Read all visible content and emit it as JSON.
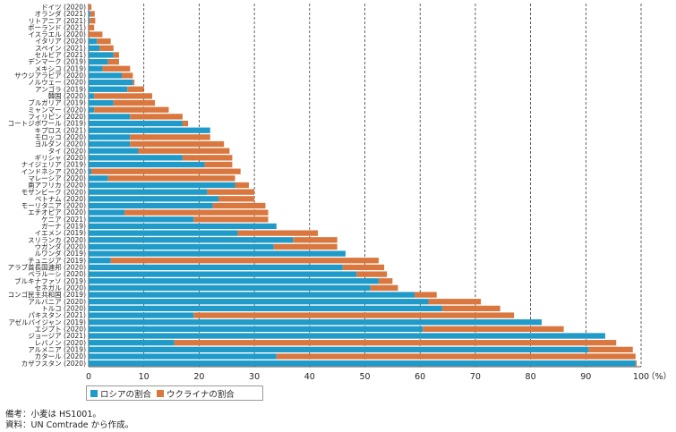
{
  "chart_data": {
    "type": "bar",
    "orientation": "horizontal",
    "stacked": true,
    "categories": [
      "ドイツ (2020)",
      "オランダ (2021)",
      "リトアニア (2021)",
      "ポーランド (2021)",
      "イスラエル (2020)",
      "イタリア (2020)",
      "スペイン (2021)",
      "セルビア (2021)",
      "デンマーク (2019)",
      "メキシコ (2019)",
      "サウジアラビア (2020)",
      "ノルウェー (2020)",
      "アンゴラ (2019)",
      "韓国 (2020)",
      "ブルガリア (2019)",
      "ミャンマー (2020)",
      "フィリピン (2020)",
      "コートジボワール (2019)",
      "キプロス (2021)",
      "モロッコ (2020)",
      "ヨルダン (2020)",
      "タイ (2020)",
      "ギリシャ (2020)",
      "ナイジェリア (2019)",
      "インドネシア (2020)",
      "マレーシア (2020)",
      "南アフリカ (2020)",
      "モザンビーク (2020)",
      "ベトナム (2020)",
      "モーリタニア (2020)",
      "エチオピア (2020)",
      "ケニア (2021)",
      "ガーナ (2019)",
      "イエメン (2019)",
      "スリランカ (2020)",
      "ウガンダ (2020)",
      "ルワンダ (2019)",
      "チュニジア (2019)",
      "アラブ首長国連邦 (2020)",
      "ベラルーシ (2020)",
      "ブルキナファソ (2019)",
      "セネガル (2020)",
      "コンゴ民主共和国 (2019)",
      "アルバニア (2020)",
      "トルコ (2020)",
      "パキスタン (2021)",
      "アゼルバイジャン (2019)",
      "エジプト (2020)",
      "ジョージア (2021)",
      "レバノン (2020)",
      "アルメニア (2019)",
      "カタール (2020)",
      "カザフスタン (2020)"
    ],
    "series": [
      {
        "name": "ロシアの割合",
        "color": "#1f9ac9",
        "values": [
          0,
          0.3,
          0.2,
          0,
          0,
          1.5,
          2,
          4.5,
          3.5,
          2.5,
          6,
          8,
          7,
          1,
          4.5,
          1,
          7.5,
          17,
          22,
          7.5,
          7.5,
          9,
          17,
          21,
          0.5,
          3.5,
          26.5,
          21.5,
          23.5,
          22.5,
          6.5,
          19,
          34,
          27,
          37,
          33.5,
          46.5,
          4,
          46,
          48.5,
          52.5,
          51,
          59,
          61.5,
          64,
          19,
          82,
          60.5,
          93.5,
          15.5,
          90.5,
          34,
          99
        ]
      },
      {
        "name": "ウクライナの割合",
        "color": "#d9773e",
        "values": [
          0.5,
          0.8,
          1,
          1,
          2.5,
          2.5,
          2.5,
          1,
          2,
          5,
          2,
          0.3,
          3,
          10.5,
          7.5,
          13.5,
          9.5,
          1,
          0,
          14.5,
          17,
          16.5,
          9,
          5,
          27,
          23,
          2.5,
          8.5,
          6.5,
          9.5,
          26,
          13.5,
          0,
          14.5,
          8,
          11.5,
          0,
          48.5,
          7.5,
          5.5,
          2.5,
          5,
          4,
          9.5,
          10.5,
          58,
          0,
          25.5,
          0,
          80,
          8,
          65,
          0.2
        ]
      }
    ],
    "xlim": [
      0,
      100
    ],
    "x_ticks": [
      "0",
      "10",
      "20",
      "30",
      "40",
      "50",
      "60",
      "70",
      "80",
      "90",
      "100"
    ],
    "x_unit": "（%）",
    "grid": "vertical dashed at 10% steps",
    "legend_position": "bottom-left"
  },
  "notes": [
    "備考：小麦は HS1001。",
    "資料：UN Comtrade から作成。"
  ]
}
